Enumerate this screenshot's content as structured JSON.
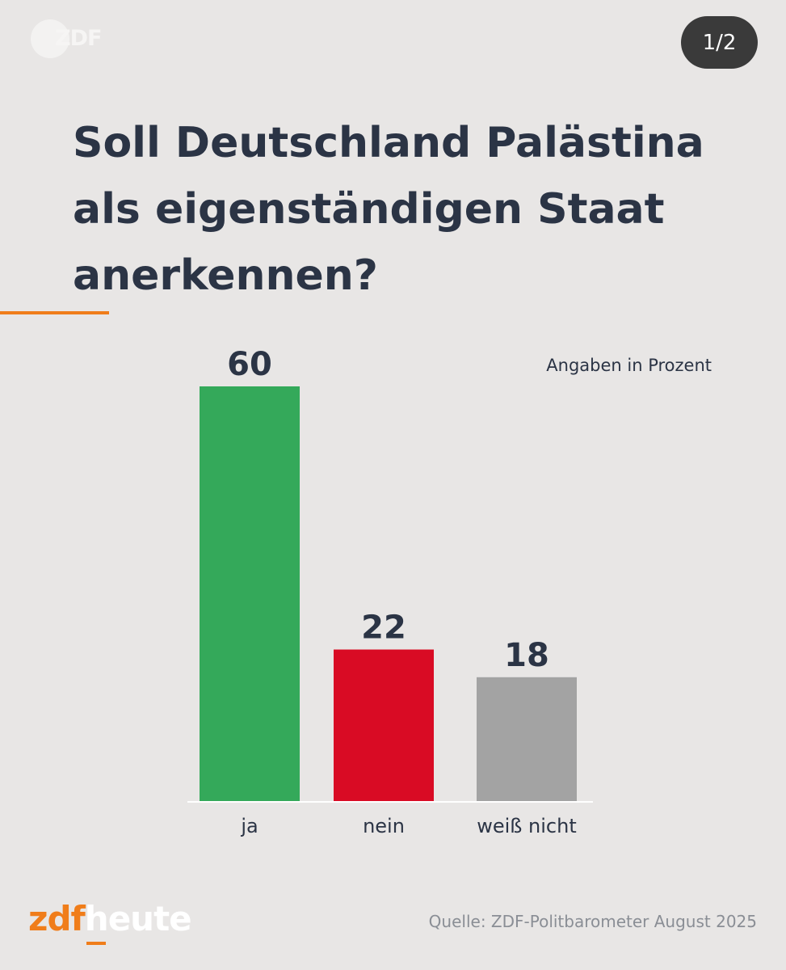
{
  "branding": {
    "top_logo": "ZDF",
    "footer_logo_part1": "zdf",
    "footer_logo_part2": "heute"
  },
  "page_indicator": "1/2",
  "title": "Soll Deutschland Palästina als eigenständigen Staat anerkennen?",
  "unit_note": "Angaben in Prozent",
  "source": "Quelle: ZDF-Politbarometer August 2025",
  "chart_data": {
    "type": "bar",
    "title": "Soll Deutschland Palästina als eigenständigen Staat anerkennen?",
    "categories": [
      "ja",
      "nein",
      "weiß nicht"
    ],
    "values": [
      60,
      22,
      18
    ],
    "value_labels": [
      "60",
      "22",
      "18"
    ],
    "colors": [
      "#34a95a",
      "#d90b24",
      "#a3a3a3"
    ],
    "ylim": [
      0,
      60
    ],
    "xlabel": "",
    "ylabel": "Angaben in Prozent",
    "grid": false
  }
}
